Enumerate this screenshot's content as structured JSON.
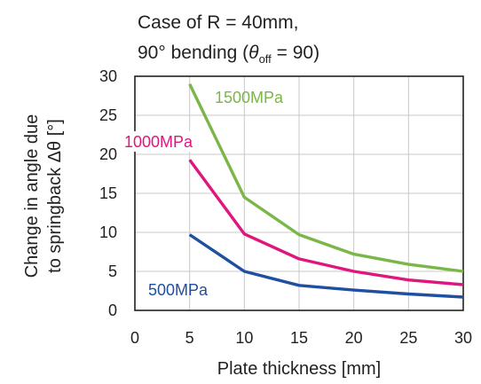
{
  "chart_data": {
    "type": "line",
    "title_line1": "Case of R = 40mm,",
    "title_line2_pre": "90° bending (",
    "title_theta": "θ",
    "title_sub": "off",
    "title_line2_post": " = 90)",
    "xlabel": "Plate thickness [mm]",
    "ylabel_line1": "Change in angle due",
    "ylabel_line2": "to springback Δθ [°]",
    "xlim": [
      0,
      30
    ],
    "ylim": [
      0,
      30
    ],
    "xticks": [
      0,
      5,
      10,
      15,
      20,
      25,
      30
    ],
    "yticks": [
      0,
      5,
      10,
      15,
      20,
      25,
      30
    ],
    "grid": true,
    "x": [
      5,
      10,
      15,
      20,
      25,
      30
    ],
    "series": [
      {
        "name": "1500MPa",
        "color": "#7ab648",
        "values": [
          29.0,
          14.5,
          9.7,
          7.2,
          5.9,
          5.0
        ]
      },
      {
        "name": "1000MPa",
        "color": "#e0167f",
        "values": [
          19.3,
          9.8,
          6.6,
          5.0,
          3.9,
          3.3
        ]
      },
      {
        "name": "500MPa",
        "color": "#1f4fa0",
        "values": [
          9.7,
          5.0,
          3.2,
          2.6,
          2.1,
          1.7
        ]
      }
    ]
  }
}
